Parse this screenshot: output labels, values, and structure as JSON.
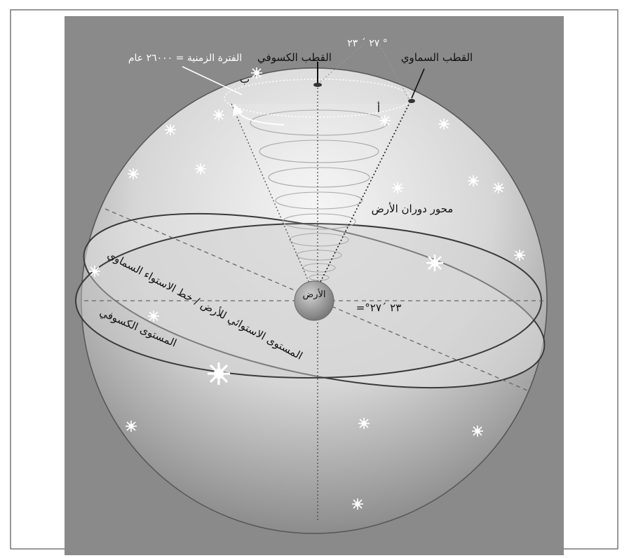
{
  "figure": {
    "labels": {
      "period": "الفترة الزمنية = ٢٦٠٠٠ عام",
      "ecliptic_pole": "القطب الكسوفي",
      "angle_top": "٢٧ ´ ٢٣ °",
      "celestial_pole": "القطب السماوي",
      "point_b": "ب",
      "point_a": "أ",
      "rotation_axis": "محور دوران الأرض",
      "earth": "الأرض",
      "angle_mid": "=°٢٣ ´٢٧",
      "celestial_equator": "المستوى الاستوائي للأرض / خط الاستواء السماوي",
      "ecliptic_plane": "المستوى الكسوفي"
    }
  }
}
